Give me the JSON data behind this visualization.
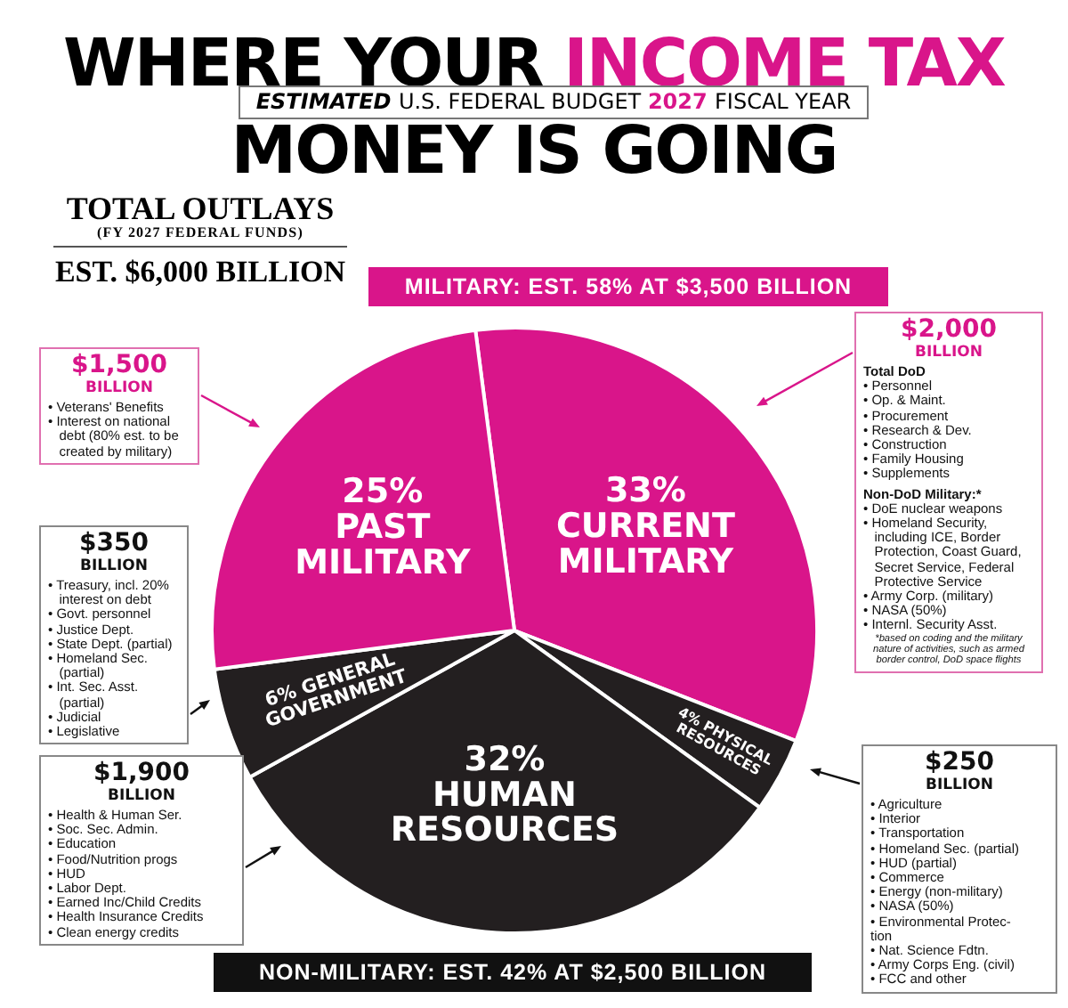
{
  "chart_data": {
    "type": "pie",
    "title": "WHERE YOUR INCOME TAX MONEY IS GOING",
    "subtitle": "ESTIMATED U.S. FEDERAL BUDGET 2027 FISCAL YEAR",
    "categories": [
      "CURRENT MILITARY",
      "PHYSICAL RESOURCES",
      "HUMAN RESOURCES",
      "GENERAL GOVERNMENT",
      "PAST MILITARY"
    ],
    "values": [
      33,
      4,
      32,
      6,
      25
    ],
    "value_labels": [
      "33%",
      "4%",
      "32%",
      "6%",
      "25%"
    ],
    "colors": [
      "#d9158a",
      "#231f20",
      "#231f20",
      "#231f20",
      "#d9158a"
    ],
    "annotations": [
      "TOTAL OUTLAYS\n(FY 2027 FEDERAL FUNDS)\nEST. $6,000 BILLION",
      "MILITARY: EST. 58% AT $3,500 BILLION",
      "NON-MILITARY: EST. 42% AT $2,500 BILLION",
      "$1,500\nBILLION\n• Veterans' Benefits\n• Interest on national\n   debt (80% est. to be\n   created by military)",
      "$350\nBILLION\n• Treasury, incl. 20%\n   interest on debt\n• Govt. personnel\n• Justice Dept.\n• State Dept. (partial)\n• Homeland Sec.\n   (partial)\n• Int. Sec. Asst.\n   (partial)\n• Judicial\n• Legislative",
      "$1,900\nBILLION\n• Health & Human Ser.\n• Soc. Sec. Admin.\n• Education\n• Food/Nutrition progs\n• HUD\n• Labor Dept.\n• Earned Inc/Child Credits\n• Health Insurance Credits\n• Clean energy credits",
      "$2,000\nBILLION\nTotal DoD\n• Personnel\n• Op. & Maint.\n• Procurement\n• Research & Dev.\n• Construction\n• Family Housing\n• Supplements\nNon-DoD Military:*\n• DoE nuclear weapons\n• Homeland Security,\n   including ICE, Border\n   Protection, Coast Guard,\n   Secret Service, Federal\n   Protective Service\n• Army Corp. (military)\n• NASA (50%)\n• Internl. Security Asst.\n*based on coding and the military\nnature of activities, such as armed\nborder control, DoD space flights",
      "$250\nBILLION\n• Agriculture\n• Interior\n• Transportation\n• Homeland Sec. (partial)\n• HUD (partial)\n• Commerce\n• Energy (non-military)\n• NASA (50%)\n• Environmental Protec-\ntion\n• Nat. Science Fdtn.\n• Army Corps Eng. (civil)\n• FCC and other"
    ]
  }
}
